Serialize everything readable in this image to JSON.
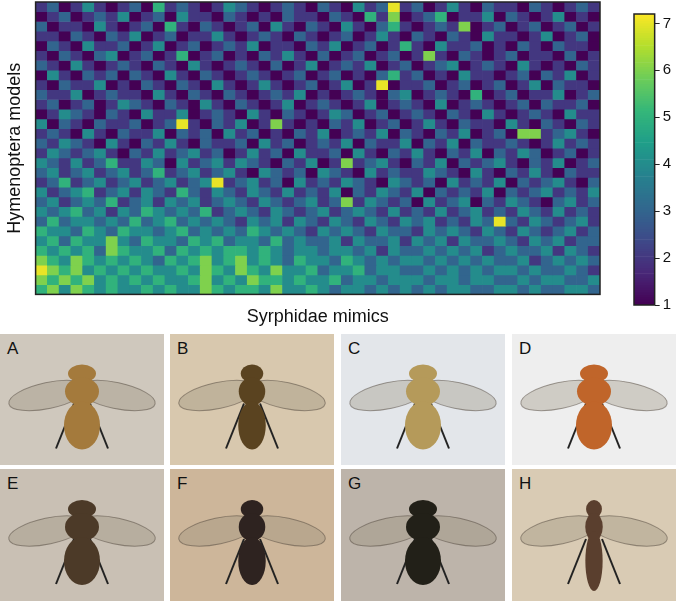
{
  "chart_data": {
    "type": "heatmap",
    "x_label": "Syrphidae mimics",
    "y_label": "Hymenoptera models",
    "tick_labels": false,
    "colorbar": {
      "lim": [
        1,
        7.2
      ],
      "ticks": [
        1,
        2,
        3,
        4,
        5,
        6,
        7
      ]
    },
    "cells": [
      [
        2,
        3,
        1,
        2,
        4,
        2,
        1,
        2,
        3,
        1,
        5,
        2,
        3,
        2,
        1,
        2,
        4,
        3,
        2,
        1,
        2,
        3,
        2,
        1,
        3,
        2,
        1,
        4,
        2,
        3,
        7,
        2,
        3,
        1,
        2,
        4,
        2,
        1,
        3,
        2,
        2,
        1,
        3,
        2,
        1,
        2,
        3,
        2
      ],
      [
        1,
        2,
        3,
        1,
        2,
        3,
        2,
        4,
        1,
        2,
        3,
        1,
        4,
        2,
        2,
        1,
        3,
        2,
        1,
        2,
        1,
        3,
        2,
        2,
        1,
        3,
        2,
        1,
        5,
        2,
        6,
        1,
        2,
        3,
        5,
        1,
        2,
        2,
        4,
        1,
        3,
        2,
        1,
        2,
        4,
        1,
        2,
        1
      ],
      [
        3,
        1,
        2,
        2,
        1,
        4,
        2,
        1,
        2,
        3,
        1,
        5,
        2,
        1,
        3,
        2,
        1,
        2,
        3,
        1,
        4,
        2,
        1,
        3,
        2,
        1,
        4,
        2,
        1,
        3,
        5,
        2,
        1,
        2,
        3,
        2,
        6,
        1,
        2,
        3,
        1,
        2,
        3,
        1,
        2,
        3,
        1,
        2
      ],
      [
        2,
        2,
        1,
        3,
        2,
        1,
        3,
        2,
        4,
        1,
        2,
        3,
        1,
        2,
        2,
        4,
        2,
        1,
        2,
        3,
        2,
        1,
        3,
        2,
        1,
        2,
        3,
        1,
        2,
        4,
        2,
        1,
        3,
        2,
        1,
        3,
        2,
        1,
        4,
        2,
        2,
        1,
        2,
        4,
        1,
        2,
        3,
        1
      ],
      [
        1,
        3,
        2,
        1,
        4,
        2,
        2,
        3,
        1,
        2,
        4,
        1,
        2,
        3,
        1,
        2,
        3,
        2,
        4,
        1,
        2,
        2,
        1,
        3,
        2,
        4,
        1,
        2,
        3,
        1,
        2,
        5,
        2,
        1,
        4,
        2,
        2,
        3,
        1,
        2,
        1,
        3,
        2,
        1,
        3,
        2,
        2,
        1
      ],
      [
        2,
        1,
        3,
        2,
        1,
        3,
        4,
        1,
        2,
        3,
        1,
        2,
        5,
        1,
        2,
        3,
        1,
        2,
        1,
        3,
        2,
        4,
        2,
        1,
        3,
        1,
        2,
        3,
        1,
        2,
        3,
        1,
        2,
        6,
        2,
        1,
        3,
        2,
        1,
        2,
        3,
        1,
        2,
        2,
        1,
        3,
        1,
        2
      ],
      [
        3,
        2,
        1,
        4,
        2,
        1,
        2,
        3,
        2,
        1,
        3,
        2,
        1,
        4,
        2,
        1,
        2,
        3,
        2,
        1,
        3,
        1,
        2,
        4,
        1,
        2,
        3,
        2,
        4,
        1,
        2,
        3,
        1,
        2,
        3,
        4,
        1,
        2,
        3,
        2,
        1,
        4,
        2,
        1,
        2,
        1,
        3,
        2
      ],
      [
        1,
        4,
        2,
        1,
        3,
        2,
        3,
        1,
        3,
        2,
        1,
        4,
        2,
        1,
        3,
        2,
        1,
        2,
        3,
        2,
        1,
        2,
        3,
        1,
        2,
        3,
        1,
        2,
        1,
        3,
        5,
        2,
        3,
        1,
        2,
        1,
        4,
        2,
        2,
        1,
        2,
        3,
        1,
        3,
        2,
        4,
        1,
        2
      ],
      [
        2,
        1,
        3,
        2,
        2,
        4,
        1,
        2,
        1,
        3,
        2,
        1,
        3,
        2,
        1,
        4,
        2,
        1,
        2,
        4,
        2,
        1,
        2,
        3,
        1,
        2,
        4,
        1,
        2,
        7,
        1,
        2,
        2,
        3,
        1,
        2,
        3,
        1,
        2,
        3,
        1,
        2,
        4,
        1,
        3,
        2,
        2,
        1
      ],
      [
        3,
        2,
        2,
        4,
        1,
        2,
        3,
        2,
        2,
        1,
        4,
        2,
        1,
        3,
        2,
        1,
        3,
        2,
        1,
        2,
        3,
        2,
        4,
        1,
        2,
        1,
        2,
        3,
        2,
        1,
        3,
        4,
        1,
        2,
        3,
        2,
        1,
        5,
        1,
        2,
        3,
        1,
        2,
        2,
        4,
        1,
        2,
        3
      ],
      [
        2,
        3,
        1,
        2,
        3,
        1,
        2,
        4,
        3,
        2,
        1,
        3,
        2,
        1,
        4,
        2,
        1,
        3,
        2,
        1,
        2,
        4,
        1,
        2,
        3,
        2,
        1,
        2,
        4,
        1,
        2,
        3,
        2,
        1,
        4,
        1,
        2,
        3,
        2,
        1,
        2,
        3,
        1,
        3,
        2,
        2,
        3,
        1
      ],
      [
        1,
        2,
        4,
        3,
        2,
        1,
        3,
        2,
        1,
        4,
        2,
        2,
        4,
        1,
        2,
        3,
        2,
        1,
        4,
        2,
        1,
        3,
        2,
        1,
        2,
        4,
        3,
        1,
        2,
        3,
        1,
        2,
        3,
        2,
        1,
        3,
        2,
        1,
        4,
        2,
        1,
        2,
        3,
        2,
        1,
        4,
        2,
        2
      ],
      [
        4,
        1,
        3,
        2,
        1,
        3,
        2,
        2,
        3,
        1,
        2,
        3,
        7,
        2,
        1,
        3,
        2,
        4,
        1,
        2,
        6,
        2,
        1,
        2,
        1,
        3,
        2,
        4,
        1,
        2,
        3,
        1,
        2,
        4,
        2,
        1,
        3,
        2,
        2,
        1,
        4,
        2,
        1,
        3,
        2,
        1,
        3,
        2
      ],
      [
        2,
        3,
        2,
        1,
        4,
        2,
        1,
        3,
        2,
        2,
        4,
        1,
        3,
        2,
        3,
        1,
        4,
        2,
        3,
        1,
        2,
        1,
        3,
        2,
        4,
        1,
        2,
        3,
        2,
        4,
        1,
        3,
        2,
        1,
        3,
        2,
        4,
        1,
        2,
        3,
        1,
        6,
        6,
        2,
        3,
        4,
        2,
        1
      ],
      [
        3,
        2,
        4,
        3,
        2,
        1,
        4,
        2,
        1,
        3,
        2,
        4,
        2,
        1,
        3,
        2,
        2,
        3,
        1,
        4,
        2,
        3,
        1,
        2,
        3,
        2,
        4,
        1,
        3,
        2,
        2,
        4,
        1,
        3,
        2,
        4,
        1,
        3,
        2,
        2,
        3,
        2,
        1,
        2,
        4,
        2,
        3,
        2
      ],
      [
        2,
        4,
        3,
        2,
        3,
        4,
        2,
        1,
        3,
        2,
        4,
        2,
        3,
        4,
        2,
        3,
        1,
        2,
        4,
        2,
        3,
        1,
        4,
        2,
        2,
        3,
        1,
        4,
        2,
        1,
        3,
        2,
        4,
        2,
        1,
        3,
        2,
        4,
        1,
        3,
        2,
        4,
        3,
        1,
        2,
        3,
        1,
        2
      ],
      [
        4,
        3,
        2,
        4,
        2,
        3,
        5,
        2,
        2,
        4,
        3,
        1,
        4,
        2,
        3,
        4,
        2,
        4,
        3,
        2,
        1,
        3,
        2,
        4,
        1,
        2,
        6,
        2,
        3,
        4,
        2,
        1,
        3,
        2,
        4,
        1,
        3,
        2,
        3,
        4,
        2,
        1,
        3,
        2,
        4,
        1,
        2,
        3
      ],
      [
        3,
        4,
        2,
        3,
        4,
        2,
        3,
        4,
        2,
        3,
        5,
        2,
        3,
        4,
        2,
        3,
        4,
        2,
        1,
        4,
        3,
        2,
        3,
        1,
        4,
        3,
        2,
        1,
        4,
        2,
        3,
        2,
        2,
        4,
        3,
        2,
        1,
        4,
        2,
        1,
        3,
        2,
        4,
        2,
        1,
        3,
        2,
        2
      ],
      [
        2,
        3,
        5,
        2,
        3,
        4,
        2,
        3,
        4,
        2,
        3,
        4,
        2,
        3,
        4,
        7,
        2,
        3,
        4,
        2,
        3,
        1,
        4,
        2,
        3,
        2,
        4,
        3,
        2,
        1,
        4,
        3,
        2,
        3,
        1,
        4,
        2,
        3,
        2,
        4,
        1,
        3,
        2,
        3,
        4,
        2,
        1,
        3
      ],
      [
        4,
        2,
        3,
        4,
        5,
        2,
        3,
        4,
        2,
        4,
        3,
        2,
        5,
        3,
        2,
        4,
        3,
        2,
        4,
        3,
        2,
        4,
        2,
        3,
        2,
        4,
        1,
        3,
        2,
        4,
        3,
        2,
        4,
        1,
        3,
        2,
        3,
        2,
        4,
        1,
        3,
        2,
        3,
        4,
        2,
        3,
        2,
        4
      ],
      [
        3,
        4,
        2,
        3,
        4,
        3,
        5,
        2,
        3,
        4,
        2,
        4,
        3,
        4,
        2,
        3,
        4,
        3,
        2,
        4,
        3,
        2,
        3,
        4,
        2,
        3,
        6,
        2,
        4,
        3,
        2,
        3,
        1,
        4,
        2,
        3,
        4,
        1,
        3,
        2,
        4,
        3,
        2,
        1,
        3,
        4,
        2,
        3
      ],
      [
        4,
        3,
        4,
        5,
        3,
        4,
        2,
        4,
        3,
        5,
        4,
        3,
        4,
        3,
        5,
        2,
        3,
        4,
        3,
        2,
        4,
        3,
        2,
        3,
        4,
        2,
        3,
        4,
        3,
        2,
        4,
        2,
        3,
        2,
        4,
        2,
        3,
        4,
        2,
        3,
        2,
        4,
        3,
        2,
        4,
        2,
        3,
        2
      ],
      [
        3,
        5,
        3,
        4,
        4,
        3,
        4,
        3,
        5,
        3,
        4,
        5,
        3,
        4,
        3,
        4,
        3,
        2,
        4,
        3,
        4,
        2,
        4,
        3,
        2,
        4,
        3,
        2,
        4,
        3,
        2,
        4,
        3,
        4,
        2,
        3,
        2,
        4,
        3,
        7,
        3,
        2,
        4,
        3,
        2,
        3,
        4,
        2
      ],
      [
        5,
        4,
        4,
        3,
        5,
        4,
        3,
        5,
        4,
        4,
        3,
        4,
        5,
        3,
        4,
        3,
        4,
        3,
        5,
        4,
        3,
        4,
        3,
        2,
        4,
        3,
        4,
        3,
        2,
        4,
        3,
        3,
        2,
        4,
        3,
        4,
        3,
        2,
        4,
        3,
        2,
        4,
        3,
        2,
        3,
        4,
        2,
        3
      ],
      [
        4,
        5,
        3,
        5,
        4,
        4,
        6,
        4,
        3,
        5,
        4,
        4,
        3,
        5,
        4,
        5,
        3,
        4,
        4,
        3,
        5,
        3,
        4,
        3,
        3,
        4,
        2,
        4,
        3,
        3,
        4,
        2,
        4,
        3,
        4,
        2,
        4,
        3,
        3,
        4,
        3,
        2,
        4,
        3,
        4,
        2,
        3,
        3
      ],
      [
        5,
        4,
        5,
        4,
        5,
        3,
        6,
        5,
        4,
        4,
        5,
        3,
        5,
        4,
        5,
        4,
        5,
        5,
        4,
        5,
        4,
        3,
        4,
        4,
        3,
        4,
        4,
        3,
        4,
        2,
        4,
        3,
        3,
        4,
        3,
        4,
        3,
        4,
        2,
        3,
        4,
        3,
        3,
        4,
        2,
        4,
        3,
        2
      ],
      [
        6,
        5,
        4,
        6,
        5,
        4,
        5,
        4,
        5,
        4,
        3,
        5,
        4,
        5,
        6,
        4,
        5,
        6,
        4,
        5,
        4,
        3,
        5,
        4,
        4,
        3,
        5,
        4,
        3,
        4,
        3,
        4,
        4,
        3,
        4,
        3,
        4,
        3,
        4,
        3,
        3,
        4,
        2,
        3,
        4,
        3,
        4,
        3
      ],
      [
        7,
        6,
        5,
        6,
        4,
        5,
        4,
        5,
        4,
        5,
        4,
        4,
        5,
        4,
        6,
        5,
        4,
        6,
        5,
        4,
        6,
        4,
        4,
        5,
        3,
        4,
        4,
        5,
        3,
        4,
        4,
        3,
        3,
        4,
        3,
        4,
        3,
        4,
        3,
        4,
        4,
        3,
        4,
        3,
        3,
        4,
        3,
        2
      ],
      [
        6,
        5,
        6,
        5,
        6,
        4,
        5,
        4,
        5,
        4,
        5,
        4,
        4,
        5,
        6,
        4,
        5,
        4,
        6,
        5,
        5,
        4,
        5,
        4,
        4,
        5,
        3,
        4,
        4,
        3,
        4,
        4,
        4,
        3,
        4,
        4,
        3,
        4,
        4,
        3,
        3,
        4,
        3,
        4,
        4,
        3,
        3,
        4
      ],
      [
        5,
        6,
        4,
        6,
        5,
        4,
        5,
        4,
        4,
        5,
        4,
        5,
        4,
        4,
        6,
        5,
        4,
        5,
        5,
        4,
        6,
        4,
        4,
        5,
        4,
        3,
        4,
        4,
        3,
        4,
        3,
        4,
        3,
        4,
        3,
        4,
        4,
        3,
        3,
        4,
        4,
        3,
        4,
        3,
        3,
        4,
        4,
        3
      ]
    ]
  },
  "panels": [
    "A",
    "B",
    "C",
    "D",
    "E",
    "F",
    "G",
    "H"
  ]
}
